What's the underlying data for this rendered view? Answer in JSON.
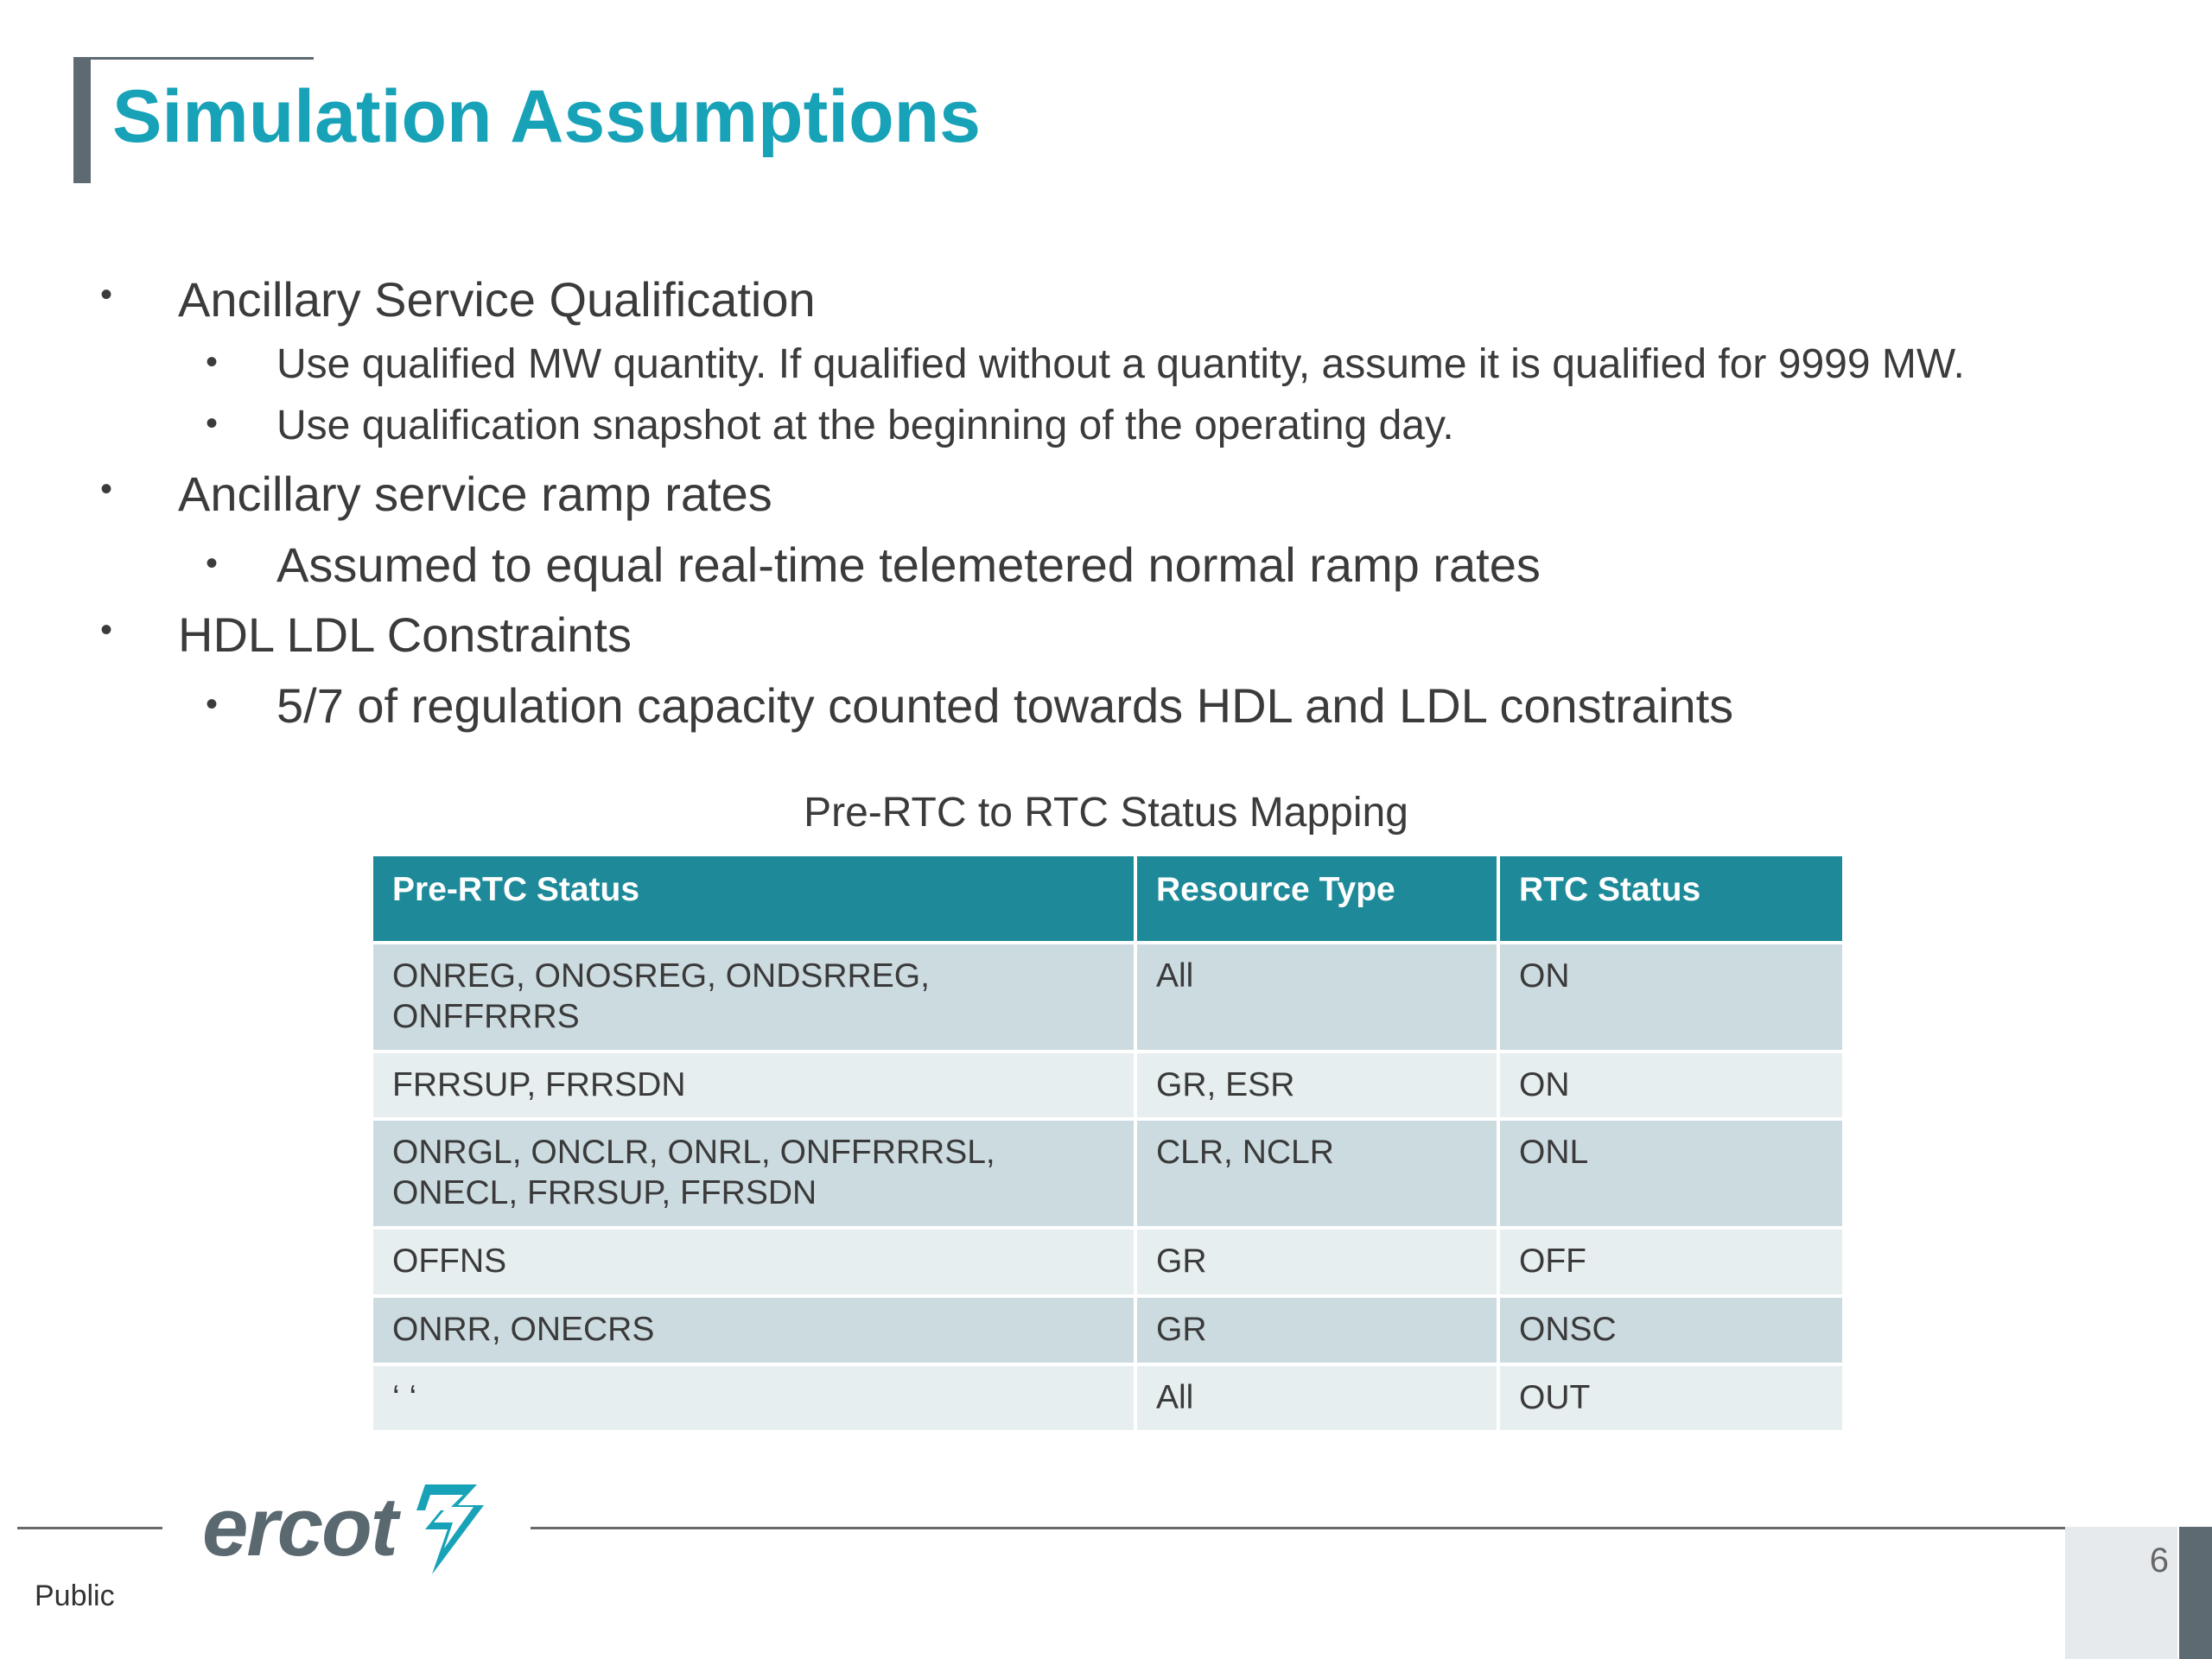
{
  "title": "Simulation Assumptions",
  "bullets": [
    {
      "text": "Ancillary Service Qualification",
      "sub": [
        "Use qualified MW quantity. If qualified without a quantity, assume it is qualified for 9999 MW.",
        "Use qualification snapshot at the beginning of the operating day."
      ]
    },
    {
      "text": "Ancillary service ramp rates",
      "sub": [
        "Assumed to equal real-time telemetered normal ramp rates"
      ]
    },
    {
      "text": "HDL LDL Constraints",
      "sub": [
        "5/7 of regulation capacity counted towards HDL and LDL constraints"
      ]
    }
  ],
  "bullet_symbol": "•",
  "table": {
    "caption": "Pre-RTC to RTC Status Mapping",
    "headers": [
      "Pre-RTC Status",
      "Resource Type",
      "RTC Status"
    ],
    "rows": [
      [
        "ONREG, ONOSREG, ONDSRREG, ONFFRRRS",
        "All",
        "ON"
      ],
      [
        "FRRSUP, FRRSDN",
        "GR, ESR",
        "ON"
      ],
      [
        "ONRGL, ONCLR, ONRL, ONFFRRRSL, ONECL, FRRSUP, FFRSDN",
        "CLR, NCLR",
        "ONL"
      ],
      [
        "OFFNS",
        "GR",
        "OFF"
      ],
      [
        "ONRR, ONECRS",
        "GR",
        "ONSC"
      ],
      [
        "‘ ‘",
        "All",
        "OUT"
      ]
    ]
  },
  "footer": {
    "logo_text": "ercot",
    "logo_icon": "ercot-bolt-icon",
    "classification": "Public",
    "page_number": "6"
  },
  "colors": {
    "title": "#17a2b8",
    "header_bg": "#1e8a99",
    "row_odd": "#ccdbe0",
    "row_even": "#e6eef0",
    "accent_gray": "#5e6a71"
  }
}
